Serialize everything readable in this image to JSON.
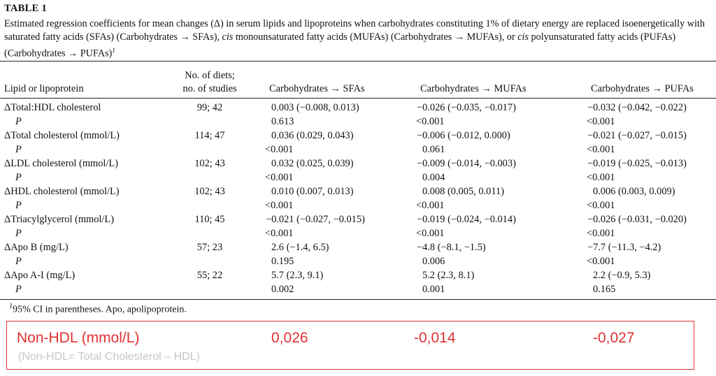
{
  "table": {
    "title": "TABLE 1",
    "caption_parts": [
      "Estimated regression coefficients for mean changes (Δ) in serum lipids and lipoproteins when carbohydrates constituting 1% of dietary energy are replaced isoenergetically with saturated fatty acids (SFAs) (Carbohydrates → SFAs), ",
      "cis",
      " monounsaturated fatty acids (MUFAs) (Carbohydrates → MUFAs), or ",
      "cis",
      " polyunsaturated fatty acids (PUFAs) (Carbohydrates → PUFAs)",
      "1"
    ],
    "headers": {
      "lipid": "Lipid or lipoprotein",
      "no_diets_line1": "No. of diets;",
      "no_diets_line2": "no. of studies",
      "sfa": "Carbohydrates → SFAs",
      "mufa": "Carbohydrates → MUFAs",
      "pufa": "Carbohydrates → PUFAs"
    },
    "rows": [
      {
        "label": "ΔTotal:HDL cholesterol",
        "n": "99; 42",
        "sfa": "0.003 (−0.008, 0.013)",
        "mufa": "−0.026 (−0.035, −0.017)",
        "pufa": "−0.032 (−0.042, −0.022)",
        "p_label": "P",
        "p_sfa": "0.613",
        "p_mufa": "<0.001",
        "p_pufa": "<0.001"
      },
      {
        "label": "ΔTotal cholesterol (mmol/L)",
        "n": "114; 47",
        "sfa": "0.036 (0.029, 0.043)",
        "mufa": "−0.006 (−0.012, 0.000)",
        "pufa": "−0.021 (−0.027, −0.015)",
        "p_label": "P",
        "p_sfa": "<0.001",
        "p_mufa": "0.061",
        "p_pufa": "<0.001"
      },
      {
        "label": "ΔLDL cholesterol (mmol/L)",
        "n": "102; 43",
        "sfa": "0.032 (0.025, 0.039)",
        "mufa": "−0.009 (−0.014, −0.003)",
        "pufa": "−0.019 (−0.025, −0.013)",
        "p_label": "P",
        "p_sfa": "<0.001",
        "p_mufa": "0.004",
        "p_pufa": "<0.001"
      },
      {
        "label": "ΔHDL cholesterol (mmol/L)",
        "n": "102; 43",
        "sfa": "0.010 (0.007, 0.013)",
        "mufa": "0.008 (0.005, 0.011)",
        "pufa": "0.006 (0.003, 0.009)",
        "p_label": "P",
        "p_sfa": "<0.001",
        "p_mufa": "<0.001",
        "p_pufa": "<0.001"
      },
      {
        "label": "ΔTriacylglycerol (mmol/L)",
        "n": "110; 45",
        "sfa": "−0.021 (−0.027, −0.015)",
        "mufa": "−0.019 (−0.024, −0.014)",
        "pufa": "−0.026 (−0.031, −0.020)",
        "p_label": "P",
        "p_sfa": "<0.001",
        "p_mufa": "<0.001",
        "p_pufa": "<0.001"
      },
      {
        "label": "ΔApo B (mg/L)",
        "n": "57; 23",
        "sfa": "2.6 (−1.4, 6.5)",
        "mufa": "−4.8 (−8.1, −1.5)",
        "pufa": "−7.7 (−11.3, −4.2)",
        "p_label": "P",
        "p_sfa": "0.195",
        "p_mufa": "0.006",
        "p_pufa": "<0.001"
      },
      {
        "label": "ΔApo A-I (mg/L)",
        "n": "55; 22",
        "sfa": "5.7 (2.3, 9.1)",
        "mufa": "5.2 (2.3, 8.1)",
        "pufa": "2.2 (−0.9, 5.3)",
        "p_label": "P",
        "p_sfa": "0.002",
        "p_mufa": "0.001",
        "p_pufa": "0.165"
      }
    ],
    "footnote_mark": "1",
    "footnote": "95% CI in parentheses. Apo, apolipoprotein."
  },
  "annotation": {
    "label": "Non-HDL (mmol/L)",
    "sfa": "0,026",
    "mufa": "-0,014",
    "pufa": "-0,027",
    "note": "(Non-HDL= Total Cholesterol – HDL)",
    "color": "#e03131"
  }
}
